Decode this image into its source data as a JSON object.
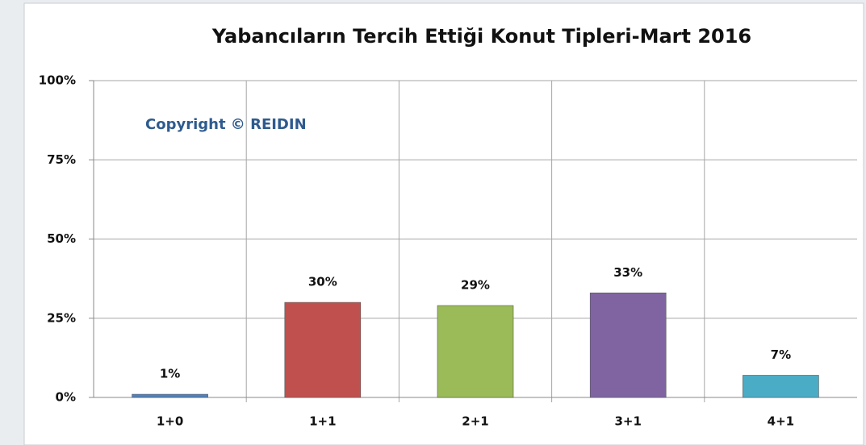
{
  "chart_data": {
    "type": "bar",
    "title": "Yabancıların Tercih Ettiği Konut Tipleri-Mart 2016",
    "annotation": "Copyright © REIDIN",
    "categories": [
      "1+0",
      "1+1",
      "2+1",
      "3+1",
      "4+1"
    ],
    "values": [
      1,
      30,
      29,
      33,
      7
    ],
    "value_labels": [
      "1%",
      "30%",
      "29%",
      "33%",
      "7%"
    ],
    "colors": [
      "#4f81bd",
      "#c0504d",
      "#9bbb59",
      "#8064a2",
      "#4bacc6"
    ],
    "ylim": [
      0,
      100
    ],
    "yticks": [
      {
        "value": 0,
        "label": "0%"
      },
      {
        "value": 25,
        "label": "25%"
      },
      {
        "value": 50,
        "label": "50%"
      },
      {
        "value": 75,
        "label": "75%"
      },
      {
        "value": 100,
        "label": "100%"
      }
    ],
    "grid": true
  }
}
